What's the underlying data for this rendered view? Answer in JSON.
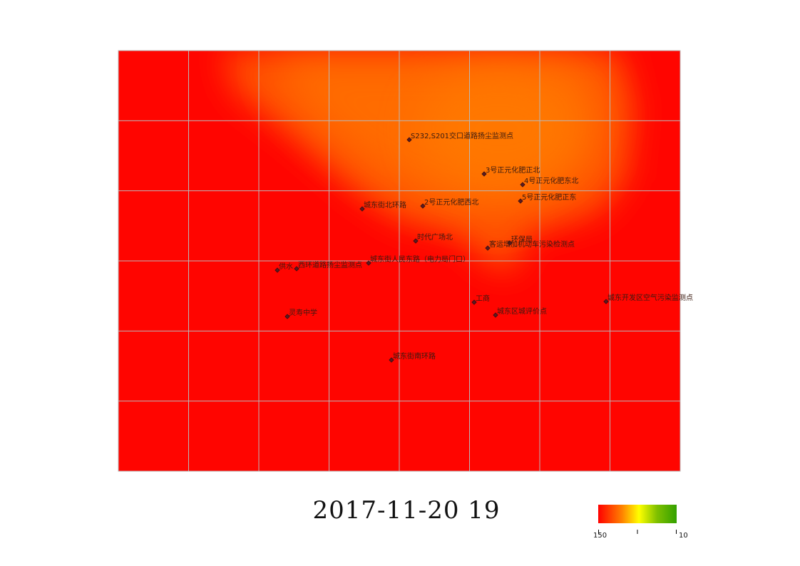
{
  "map": {
    "timestamp": "2017-11-20 19",
    "legend": {
      "min_label": "150",
      "max_label": "10",
      "colors": [
        "#ff0000",
        "#ff8000",
        "#ffff00",
        "#7fc000",
        "#33a000"
      ]
    },
    "heatmap": {
      "base_color": "#ff0500",
      "plume_color": "#ff7000"
    },
    "grid_color": "#b8b8b8",
    "stations": [
      {
        "name": "S232,S201交口道路扬尘监测点",
        "marker_icon": "diamond-marker-icon"
      },
      {
        "name": "3号正元化肥正北",
        "marker_icon": "diamond-marker-icon"
      },
      {
        "name": "4号正元化肥东北",
        "marker_icon": "diamond-marker-icon"
      },
      {
        "name": "5号正元化肥正东",
        "marker_icon": "diamond-marker-icon"
      },
      {
        "name": "城东街北环路",
        "marker_icon": "diamond-marker-icon"
      },
      {
        "name": "2号正元化肥西北",
        "marker_icon": "diamond-marker-icon"
      },
      {
        "name": "时代广场北",
        "marker_icon": "diamond-marker-icon"
      },
      {
        "name": "环保局",
        "marker_icon": "diamond-marker-icon"
      },
      {
        "name": "客运增加机动车污染检测点",
        "marker_icon": "diamond-marker-icon"
      },
      {
        "name": "城东街人民东路（电力局门口）",
        "marker_icon": "diamond-marker-icon"
      },
      {
        "name": "供水",
        "marker_icon": "diamond-marker-icon"
      },
      {
        "name": "西环道路扬尘监测点",
        "marker_icon": "diamond-marker-icon"
      },
      {
        "name": "工商",
        "marker_icon": "diamond-marker-icon"
      },
      {
        "name": "城东开发区空气污染监测点",
        "marker_icon": "diamond-marker-icon"
      },
      {
        "name": "灵寿中学",
        "marker_icon": "diamond-marker-icon"
      },
      {
        "name": "城东区城评价点",
        "marker_icon": "diamond-marker-icon"
      },
      {
        "name": "城东街南环路",
        "marker_icon": "diamond-marker-icon"
      }
    ]
  }
}
